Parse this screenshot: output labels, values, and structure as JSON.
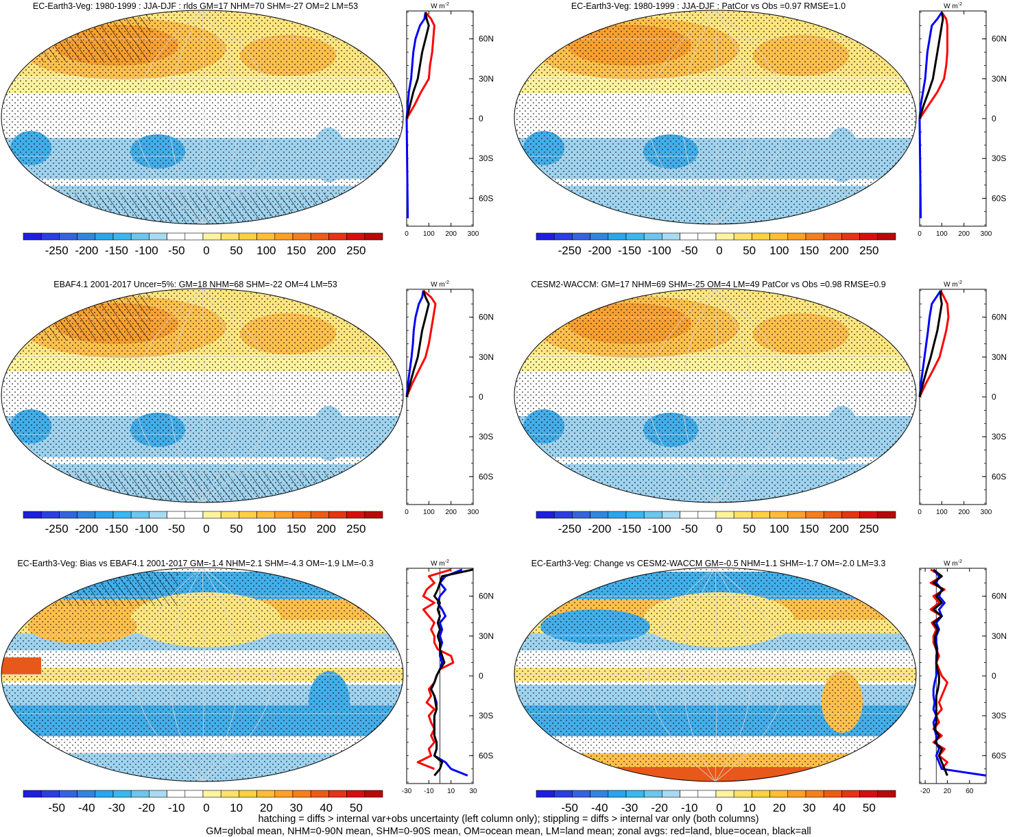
{
  "colorbar_colors": [
    "#1e1ee0",
    "#2b3ee3",
    "#3563e0",
    "#2f86dc",
    "#2aa6ea",
    "#3ab6f0",
    "#6cc6ee",
    "#a8daf2",
    "#ffffff",
    "#ffffff",
    "#fff3a0",
    "#ffe16a",
    "#ffd040",
    "#ffbe33",
    "#ffa028",
    "#f57f1e",
    "#ee5a18",
    "#e63414",
    "#d80e0e",
    "#b80808"
  ],
  "map_colors": {
    "ocean_white": "#ffffff",
    "light_blue": "#9fd3ef",
    "mid_blue": "#43aee9",
    "dark_blue": "#1f7fd8",
    "yellow": "#ffe680",
    "light_orange": "#ffc04d",
    "orange": "#f7a032",
    "red": "#e8581a"
  },
  "line_colors": {
    "land": "#ff0000",
    "ocean": "#0000ff",
    "all": "#000000"
  },
  "unit_label": "W m",
  "unit_exp": "-2",
  "footer": [
    "hatching = diffs > internal var+obs uncertainty (left column only); stippling = diffs > internal var only (both columns)",
    "GM=global mean, NHM=0-90N mean, SHM=0-90S mean, OM=ocean mean, LM=land mean; zonal avgs: red=land, blue=ocean, black=all"
  ],
  "panels": [
    {
      "title": "EC-Earth3-Veg: 1980-1999 : JJA-DJF : rlds GM=17 NHM=70 SHM=-27 OM=2 LM=53",
      "colorbar_labels": [
        "-250",
        "-200",
        "-150",
        "-100",
        "-50",
        "0",
        "50",
        "100",
        "150",
        "200",
        "250"
      ],
      "chart_data": {
        "type": "line",
        "xlim": [
          0,
          300
        ],
        "xticks": [
          "0",
          "100",
          "200",
          "300"
        ],
        "lat_ticks": [
          "60N",
          "30N",
          "0",
          "30S",
          "60S"
        ],
        "lat": [
          80,
          75,
          70,
          60,
          50,
          40,
          30,
          20,
          10,
          0,
          -75
        ],
        "series": [
          {
            "values": [
              85,
              110,
              125,
              120,
              115,
              105,
              100,
              65,
              35,
              0,
              null
            ]
          },
          {
            "values": [
              85,
              80,
              60,
              40,
              30,
              25,
              20,
              10,
              5,
              0,
              5
            ]
          },
          {
            "values": [
              85,
              90,
              100,
              85,
              70,
              60,
              50,
              30,
              15,
              0,
              null
            ]
          }
        ]
      }
    },
    {
      "title": "EC-Earth3-Veg: 1980-1999 : JJA-DJF : PatCor vs Obs =0.97 RMSE=1.0",
      "colorbar_labels": [
        "-250",
        "-200",
        "-150",
        "-100",
        "-50",
        "0",
        "50",
        "100",
        "150",
        "200",
        "250"
      ],
      "chart_data": {
        "type": "line",
        "xlim": [
          0,
          300
        ],
        "xticks": [
          "0",
          "100",
          "200",
          "300"
        ],
        "lat_ticks": [
          "60N",
          "30N",
          "0",
          "30S",
          "60S"
        ],
        "lat": [
          80,
          75,
          70,
          60,
          50,
          40,
          30,
          20,
          10,
          0,
          -75
        ],
        "series": [
          {
            "values": [
              100,
              120,
              125,
              125,
              125,
              120,
              110,
              80,
              40,
              0,
              null
            ]
          },
          {
            "values": [
              100,
              80,
              55,
              45,
              35,
              30,
              25,
              15,
              5,
              0,
              5
            ]
          },
          {
            "values": [
              100,
              105,
              100,
              90,
              80,
              70,
              60,
              40,
              18,
              0,
              null
            ]
          }
        ]
      }
    },
    {
      "title": "EBAF4.1 2001-2017 Uncer=5%: GM=18 NHM=68 SHM=-22 OM=4 LM=53",
      "colorbar_labels": [
        "-250",
        "-200",
        "-150",
        "-100",
        "-50",
        "0",
        "50",
        "100",
        "150",
        "200",
        "250"
      ],
      "chart_data": {
        "type": "line",
        "xlim": [
          0,
          300
        ],
        "xticks": [
          "0",
          "100",
          "200",
          "300"
        ],
        "lat_ticks": [
          "60N",
          "30N",
          "0",
          "30S",
          "60S"
        ],
        "lat": [
          80,
          75,
          70,
          60,
          50,
          40,
          30,
          20,
          10,
          0
        ],
        "series": [
          {
            "values": [
              75,
              110,
              130,
              120,
              110,
              100,
              85,
              55,
              25,
              0
            ]
          },
          {
            "values": [
              75,
              70,
              55,
              40,
              32,
              28,
              22,
              14,
              6,
              0
            ]
          },
          {
            "values": [
              75,
              85,
              100,
              85,
              70,
              60,
              50,
              32,
              15,
              0
            ]
          }
        ]
      }
    },
    {
      "title": "CESM2-WACCM: GM=17 NHM=69 SHM=-25 OM=4 LM=49 PatCor vs Obs =0.98 RMSE=0.9",
      "colorbar_labels": [
        "-250",
        "-200",
        "-150",
        "-100",
        "-50",
        "0",
        "50",
        "100",
        "150",
        "200",
        "250"
      ],
      "chart_data": {
        "type": "line",
        "xlim": [
          0,
          300
        ],
        "xticks": [
          "0",
          "100",
          "200",
          "300"
        ],
        "lat_ticks": [
          "60N",
          "30N",
          "0",
          "30S",
          "60S"
        ],
        "lat": [
          80,
          75,
          70,
          60,
          50,
          40,
          30,
          20,
          10,
          0
        ],
        "series": [
          {
            "values": [
              95,
              110,
              125,
              130,
              120,
              105,
              90,
              60,
              28,
              0
            ]
          },
          {
            "values": [
              95,
              75,
              55,
              45,
              38,
              30,
              22,
              14,
              6,
              0
            ]
          },
          {
            "values": [
              95,
              95,
              100,
              90,
              80,
              65,
              50,
              32,
              15,
              0
            ]
          }
        ]
      }
    },
    {
      "title": "EC-Earth3-Veg: Bias vs EBAF4.1 2001-2017 GM=-1.4 NHM=2.1 SHM=-4.3 OM=-1.9 LM=-0.3",
      "colorbar_labels": [
        "-50",
        "-40",
        "-30",
        "-20",
        "-10",
        "0",
        "10",
        "20",
        "30",
        "40",
        "50"
      ],
      "chart_data": {
        "type": "line",
        "xlim": [
          -30,
          30
        ],
        "xticks": [
          "-30",
          "-10",
          "10",
          "30"
        ],
        "lat_ticks": [
          "60N",
          "30N",
          "0",
          "30S",
          "60S"
        ],
        "lat": [
          80,
          75,
          70,
          65,
          60,
          55,
          50,
          45,
          40,
          35,
          30,
          25,
          20,
          15,
          10,
          5,
          0,
          -5,
          -10,
          -15,
          -20,
          -25,
          -30,
          -35,
          -40,
          -45,
          -50,
          -55,
          -60,
          -65,
          -70,
          -75
        ],
        "series": [
          {
            "values": [
              10,
              -10,
              -5,
              -12,
              -15,
              -5,
              -15,
              -10,
              -5,
              -8,
              -5,
              -5,
              -2,
              10,
              12,
              0,
              -3,
              -5,
              -10,
              -8,
              -12,
              -5,
              -10,
              -8,
              -5,
              -8,
              -5,
              -10,
              -8,
              -20,
              -5,
              null
            ]
          },
          {
            "values": [
              20,
              5,
              0,
              5,
              0,
              -2,
              2,
              5,
              0,
              2,
              0,
              2,
              0,
              0,
              2,
              0,
              -3,
              -5,
              -8,
              -5,
              -3,
              -3,
              -5,
              -5,
              -5,
              -5,
              -3,
              -3,
              -5,
              5,
              10,
              25
            ]
          },
          {
            "values": [
              30,
              2,
              0,
              -2,
              -5,
              0,
              -2,
              0,
              -2,
              0,
              -2,
              0,
              0,
              2,
              4,
              0,
              -3,
              -5,
              -8,
              -5,
              -4,
              -3,
              -5,
              -5,
              -5,
              -5,
              -3,
              -3,
              -5,
              2,
              0,
              -5
            ]
          }
        ]
      }
    },
    {
      "title": "EC-Earth3-Veg: Change vs CESM2-WACCM GM=-0.5 NHM=1.1 SHM=-1.7 OM=-2.0 LM=3.3",
      "colorbar_labels": [
        "-50",
        "-40",
        "-30",
        "-20",
        "-10",
        "0",
        "10",
        "20",
        "30",
        "40",
        "50"
      ],
      "chart_data": {
        "type": "line",
        "xlim": [
          -30,
          90
        ],
        "xticks": [
          "-20",
          "20",
          "60"
        ],
        "lat_ticks": [
          "60N",
          "30N",
          "0",
          "30S",
          "60S"
        ],
        "lat": [
          80,
          75,
          70,
          65,
          60,
          55,
          50,
          45,
          40,
          35,
          30,
          25,
          20,
          15,
          10,
          5,
          0,
          -5,
          -10,
          -15,
          -20,
          -25,
          -30,
          -35,
          -40,
          -45,
          -50,
          -55,
          -60,
          -65,
          -70,
          -75
        ],
        "series": [
          {
            "values": [
              -10,
              10,
              -10,
              15,
              -5,
              5,
              -10,
              10,
              -8,
              0,
              -5,
              -5,
              0,
              5,
              0,
              5,
              10,
              20,
              15,
              10,
              5,
              10,
              0,
              5,
              -5,
              10,
              -5,
              15,
              5,
              20,
              10,
              null
            ]
          },
          {
            "values": [
              -5,
              5,
              0,
              10,
              5,
              15,
              5,
              10,
              0,
              5,
              0,
              0,
              2,
              0,
              0,
              0,
              0,
              -3,
              -5,
              -5,
              -3,
              -5,
              0,
              -5,
              -3,
              0,
              0,
              5,
              0,
              5,
              10,
              90
            ]
          },
          {
            "values": [
              -5,
              10,
              -5,
              12,
              0,
              10,
              -5,
              10,
              -5,
              3,
              -2,
              -2,
              0,
              2,
              0,
              2,
              5,
              5,
              3,
              0,
              0,
              0,
              0,
              0,
              -3,
              5,
              -2,
              10,
              5,
              10,
              15,
              20
            ]
          }
        ]
      }
    }
  ]
}
